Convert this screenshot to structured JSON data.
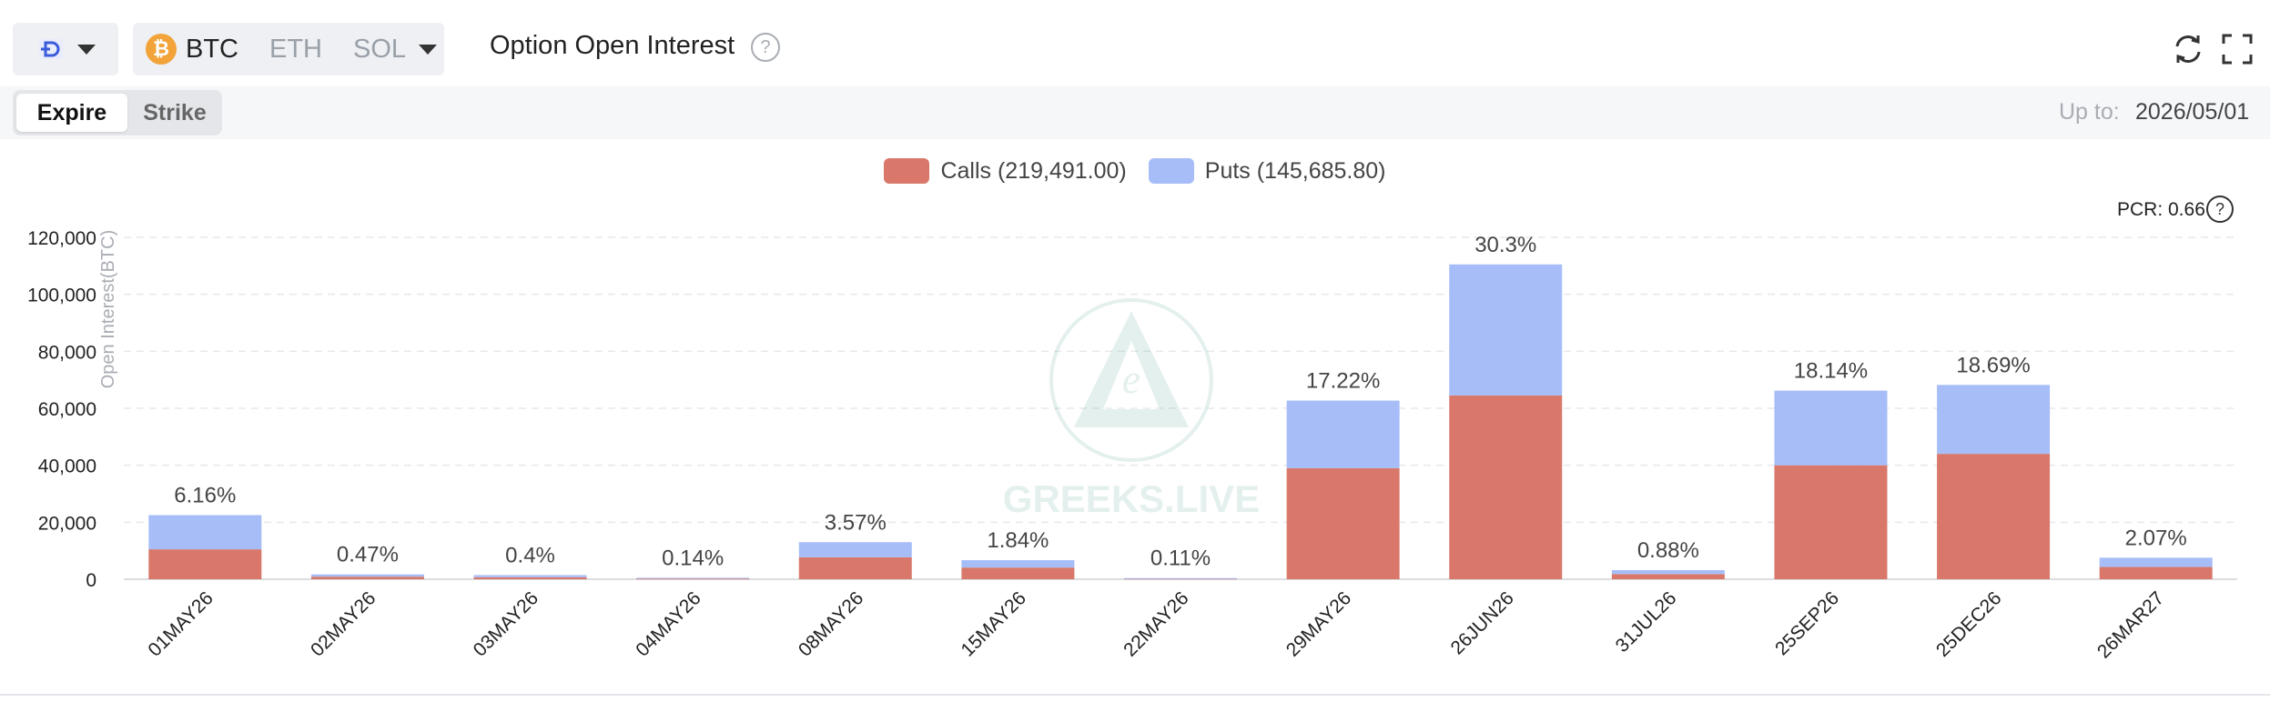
{
  "toolbar": {
    "coins": [
      {
        "label": "BTC",
        "active": true
      },
      {
        "label": "ETH",
        "active": false
      },
      {
        "label": "SOL",
        "active": false
      }
    ],
    "btc_symbol": "₿",
    "title": "Option Open Interest",
    "help_symbol": "?"
  },
  "filters": {
    "tabs": [
      "Expire",
      "Strike"
    ],
    "upto_label": "Up to:",
    "upto_value": "2026/05/01"
  },
  "legend": {
    "calls": "Calls (219,491.00)",
    "puts": "Puts (145,685.80)"
  },
  "pcr": "PCR: 0.66",
  "watermark": "GREEKS.LIVE",
  "colors": {
    "calls": "#d9786a",
    "puts": "#a6bdf8",
    "accent": "#3b5bdb",
    "btc": "#f2a33a"
  },
  "chart_data": {
    "type": "bar",
    "stacked": true,
    "ylabel": "Open Interest(BTC)",
    "ylim": [
      0,
      120000
    ],
    "yticks": [
      0,
      20000,
      40000,
      60000,
      80000,
      100000,
      120000
    ],
    "ytick_labels": [
      "0",
      "20,000",
      "40,000",
      "60,000",
      "80,000",
      "100,000",
      "120,000"
    ],
    "grid": true,
    "legend_position": "top-center",
    "categories": [
      "01MAY26",
      "02MAY26",
      "03MAY26",
      "04MAY26",
      "08MAY26",
      "15MAY26",
      "22MAY26",
      "29MAY26",
      "26JUN26",
      "31JUL26",
      "25SEP26",
      "25DEC26",
      "26MAR27"
    ],
    "series": [
      {
        "name": "Calls",
        "values": [
          10500,
          900,
          700,
          250,
          7700,
          4100,
          250,
          39000,
          64500,
          1800,
          40000,
          44000,
          4300
        ]
      },
      {
        "name": "Puts",
        "values": [
          12000,
          800,
          750,
          260,
          5300,
          2600,
          150,
          23700,
          46000,
          1400,
          26200,
          24200,
          3250
        ]
      }
    ],
    "data_labels": [
      "6.16%",
      "0.47%",
      "0.4%",
      "0.14%",
      "3.57%",
      "1.84%",
      "0.11%",
      "17.22%",
      "30.3%",
      "0.88%",
      "18.14%",
      "18.69%",
      "2.07%"
    ]
  }
}
